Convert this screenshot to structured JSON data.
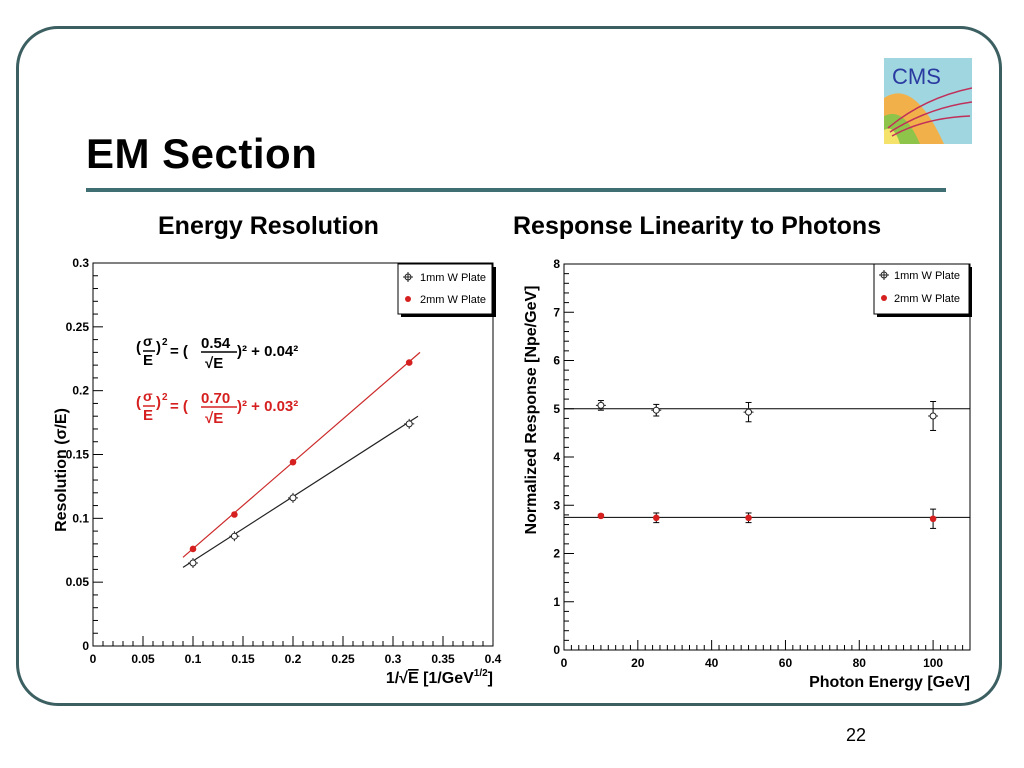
{
  "slide": {
    "title": "EM Section",
    "left_subtitle": "Energy Resolution",
    "right_subtitle": "Response Linearity to Photons",
    "page_number": "22",
    "logo_text": "CMS",
    "colors": {
      "frame": "#3c5f61",
      "series_1mm": "#222222",
      "series_2mm": "#d62020",
      "fit_2mm": "#cc2a2a"
    }
  },
  "chart_data": [
    {
      "type": "scatter",
      "xlabel_prefix": "1/",
      "xlabel_sqrt": "E",
      "xlabel_unit": " [1/GeV",
      "xlabel_sup": "1/2",
      "xlabel_close": "]",
      "ylabel": "Resolution (σ/E)",
      "xlim": [
        0,
        0.4
      ],
      "ylim": [
        0,
        0.3
      ],
      "xticks": [
        "0",
        "0.05",
        "0.1",
        "0.15",
        "0.2",
        "0.25",
        "0.3",
        "0.35",
        "0.4"
      ],
      "yticks": [
        "0",
        "0.05",
        "0.1",
        "0.15",
        "0.2",
        "0.25",
        "0.3"
      ],
      "legend_position": "top-right",
      "series": [
        {
          "name": "1mm W Plate",
          "marker": "open-cross",
          "x": [
            0.1,
            0.1414,
            0.2,
            0.3162
          ],
          "y": [
            0.065,
            0.086,
            0.116,
            0.174
          ],
          "fit_x": [
            0.09,
            0.325
          ],
          "fit_y": [
            0.0616,
            0.18
          ]
        },
        {
          "name": "2mm W Plate",
          "marker": "filled-circle",
          "x": [
            0.1,
            0.1414,
            0.2,
            0.3162
          ],
          "y": [
            0.076,
            0.103,
            0.144,
            0.222
          ],
          "fit_x": [
            0.09,
            0.327
          ],
          "fit_y": [
            0.0695,
            0.23
          ]
        }
      ],
      "annotations": [
        {
          "lhs_num": "σ",
          "lhs_den": "E",
          "exp": "2",
          "eq": " = (",
          "frac_num": "0.54",
          "frac_den": "√E",
          "rhs": ")² + 0.04²",
          "series": "1mm W Plate"
        },
        {
          "lhs_num": "σ",
          "lhs_den": "E",
          "exp": "2",
          "eq": " = (",
          "frac_num": "0.70",
          "frac_den": "√E",
          "rhs": ")² + 0.03²",
          "series": "2mm W Plate"
        }
      ]
    },
    {
      "type": "scatter",
      "xlabel": "Photon Energy [GeV]",
      "ylabel": "Normalized Response [Npe/GeV]",
      "xlim": [
        0,
        110
      ],
      "ylim": [
        0,
        8
      ],
      "xticks": [
        "0",
        "20",
        "40",
        "60",
        "80",
        "100"
      ],
      "yticks": [
        "0",
        "1",
        "2",
        "3",
        "4",
        "5",
        "6",
        "7",
        "8"
      ],
      "legend_position": "top-right",
      "series": [
        {
          "name": "1mm W Plate",
          "marker": "open-cross",
          "x": [
            10,
            25,
            50,
            100
          ],
          "y": [
            5.07,
            4.97,
            4.93,
            4.85
          ],
          "yerr": [
            0.1,
            0.12,
            0.2,
            0.3
          ],
          "fit_y": 5.0
        },
        {
          "name": "2mm W Plate",
          "marker": "filled-circle",
          "x": [
            10,
            25,
            50,
            100
          ],
          "y": [
            2.78,
            2.74,
            2.74,
            2.72
          ],
          "yerr": [
            0.03,
            0.1,
            0.1,
            0.2
          ],
          "fit_y": 2.75
        }
      ]
    }
  ]
}
